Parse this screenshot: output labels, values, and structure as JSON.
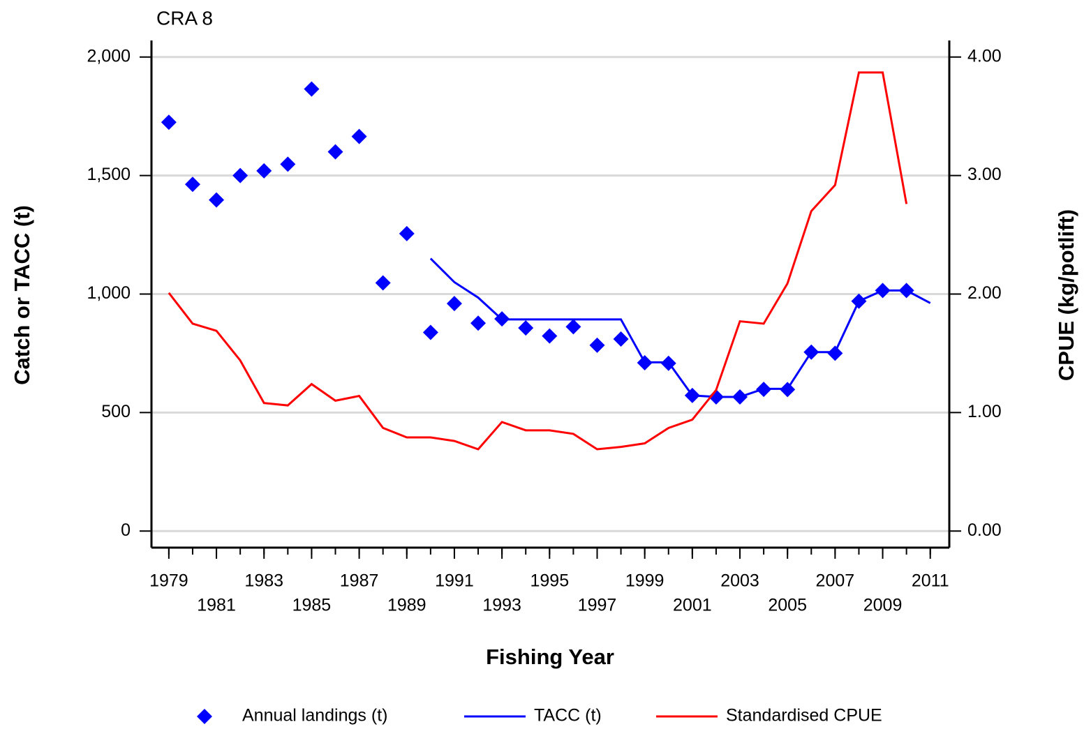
{
  "chart_data": {
    "type": "line",
    "title": "CRA 8",
    "xlabel": "Fishing Year",
    "ylabel": "Catch or TACC (t)",
    "y2label": "CPUE (kg/potlift)",
    "x": [
      1979,
      1980,
      1981,
      1982,
      1983,
      1984,
      1985,
      1986,
      1987,
      1988,
      1989,
      1990,
      1991,
      1992,
      1993,
      1994,
      1995,
      1996,
      1997,
      1998,
      1999,
      2000,
      2001,
      2002,
      2003,
      2004,
      2005,
      2006,
      2007,
      2008,
      2009,
      2010,
      2011
    ],
    "series": [
      {
        "name": "Annual landings (t)",
        "color": "#0000ff",
        "style": "marker",
        "values": [
          1725,
          1463,
          1397,
          1500,
          1520,
          1548,
          1865,
          1600,
          1665,
          1047,
          1255,
          838,
          960,
          877,
          895,
          857,
          823,
          862,
          784,
          810,
          710,
          708,
          572,
          566,
          566,
          598,
          597,
          755,
          750,
          970,
          1015,
          1015,
          null
        ]
      },
      {
        "name": "TACC (t)",
        "color": "#0000ff",
        "style": "line",
        "values": [
          null,
          null,
          null,
          null,
          null,
          null,
          null,
          null,
          null,
          null,
          null,
          1150,
          1050,
          985,
          893,
          893,
          893,
          893,
          893,
          893,
          712,
          712,
          572,
          566,
          566,
          600,
          600,
          755,
          755,
          970,
          1015,
          1015,
          962
        ]
      },
      {
        "name": "Standardised CPUE",
        "color": "#ff0000",
        "style": "line",
        "axis": "y2",
        "values": [
          2.01,
          1.75,
          1.69,
          1.44,
          1.08,
          1.06,
          1.24,
          1.1,
          1.14,
          0.87,
          0.79,
          0.79,
          0.76,
          0.69,
          0.92,
          0.85,
          0.85,
          0.82,
          0.69,
          0.71,
          0.74,
          0.87,
          0.94,
          1.19,
          1.77,
          1.75,
          2.09,
          2.7,
          2.92,
          3.87,
          3.87,
          2.76,
          null
        ]
      }
    ],
    "xlim": [
      1978.27,
      2011.8
    ],
    "xticks": [
      1979,
      1981,
      1983,
      1985,
      1987,
      1989,
      1991,
      1993,
      1995,
      1997,
      1999,
      2001,
      2003,
      2005,
      2007,
      2009,
      2011
    ],
    "ylim": [
      -70,
      2070
    ],
    "yticks": [
      0,
      500,
      {
        "value": 1000,
        "label": "1,000"
      },
      {
        "value": 1500,
        "label": "1,500"
      },
      {
        "value": 2000,
        "label": "2,000"
      }
    ],
    "y2lim": [
      -0.14,
      4.14
    ],
    "y2ticks": [
      {
        "value": 0,
        "label": "0.00"
      },
      {
        "value": 1,
        "label": "1.00"
      },
      {
        "value": 2,
        "label": "2.00"
      },
      {
        "value": 3,
        "label": "3.00"
      },
      {
        "value": 4,
        "label": "4.00"
      }
    ],
    "grid": true,
    "legend": "bottom"
  }
}
